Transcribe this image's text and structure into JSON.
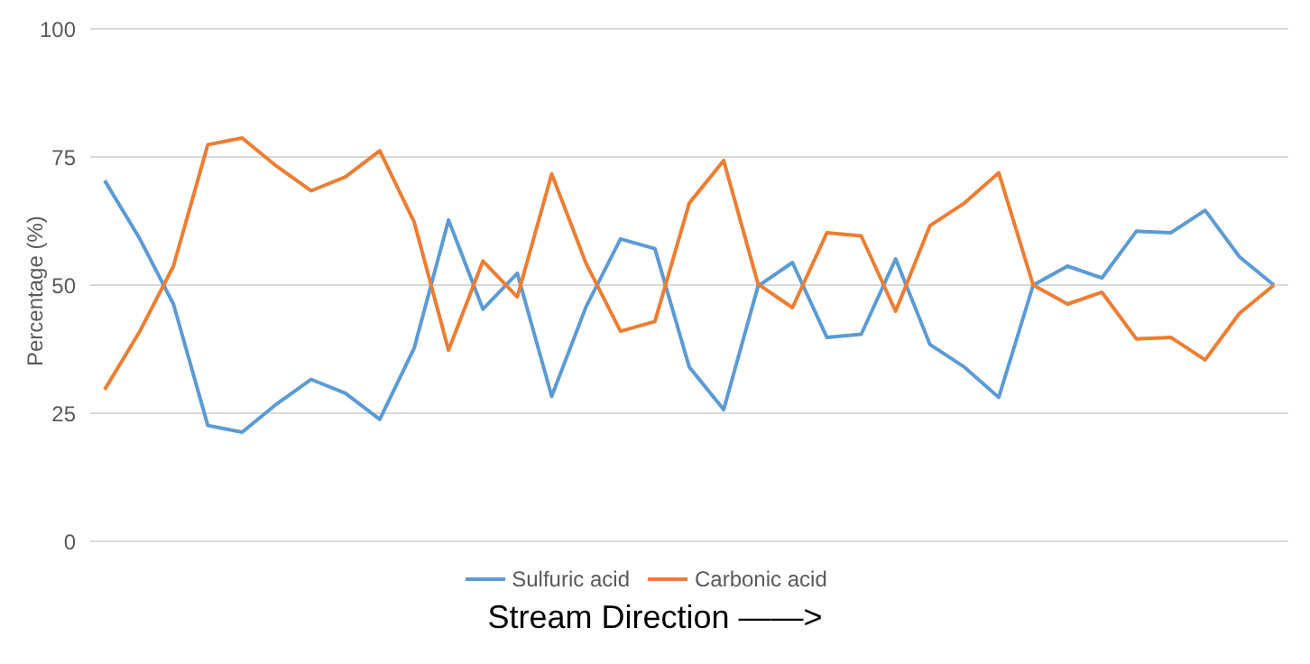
{
  "chart_data": {
    "type": "line",
    "xlabel": "Stream Direction       ——>",
    "ylabel": "Percentage (%)",
    "categories": [
      null,
      null,
      null,
      null,
      null,
      null,
      null,
      null,
      null,
      null,
      null,
      null,
      null,
      null,
      null,
      null,
      null,
      null,
      null,
      null,
      null,
      null,
      null,
      null,
      null,
      null,
      null,
      null,
      null,
      null,
      null,
      null,
      null,
      null,
      null
    ],
    "series": [
      {
        "name": "Sulfuric acid",
        "color": "#5b9bd5",
        "values": [
          70.4,
          59.3,
          46.3,
          22.6,
          21.3,
          26.8,
          31.6,
          28.9,
          23.8,
          37.7,
          62.7,
          45.3,
          52.3,
          28.3,
          45.8,
          59,
          57.1,
          34,
          25.7,
          49.8,
          54.4,
          39.8,
          40.4,
          55.1,
          38.4,
          34,
          28.1,
          50,
          53.7,
          51.4,
          60.5,
          60.2,
          64.6,
          55.5,
          50
        ]
      },
      {
        "name": "Carbonic acid",
        "color": "#ed7d31",
        "values": [
          29.6,
          40.7,
          53.7,
          77.4,
          78.7,
          73.2,
          68.4,
          71.1,
          76.2,
          62.3,
          37.3,
          54.7,
          47.7,
          71.7,
          54.2,
          41,
          42.9,
          66,
          74.3,
          50.2,
          45.6,
          60.2,
          59.6,
          44.9,
          61.6,
          66,
          71.9,
          50,
          46.3,
          48.6,
          39.5,
          39.8,
          35.4,
          44.5,
          50
        ]
      }
    ],
    "ylim": [
      0,
      100
    ],
    "yticks": [
      0,
      25,
      50,
      75,
      100
    ],
    "grid": "y",
    "legend": "bottom",
    "marker": "none",
    "line_style": "solid"
  }
}
